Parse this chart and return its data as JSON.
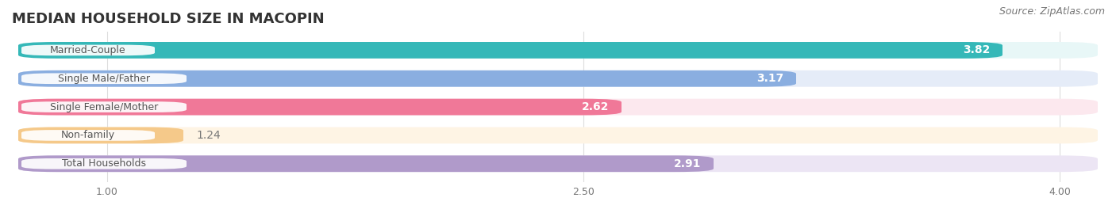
{
  "title": "MEDIAN HOUSEHOLD SIZE IN MACOPIN",
  "source": "Source: ZipAtlas.com",
  "categories": [
    "Married-Couple",
    "Single Male/Father",
    "Single Female/Mother",
    "Non-family",
    "Total Households"
  ],
  "values": [
    3.82,
    3.17,
    2.62,
    1.24,
    2.91
  ],
  "bar_colors": [
    "#35b8b8",
    "#8aaee0",
    "#f07898",
    "#f5c98a",
    "#b09aca"
  ],
  "bar_bg_colors": [
    "#e8f7f7",
    "#e5ecf8",
    "#fce8ee",
    "#fef4e4",
    "#ece5f4"
  ],
  "xlim_min": 0.72,
  "xlim_max": 4.12,
  "xticks": [
    1.0,
    2.5,
    4.0
  ],
  "xticklabels": [
    "1.00",
    "2.50",
    "4.00"
  ],
  "label_inside_threshold": 2.5,
  "title_fontsize": 13,
  "source_fontsize": 9,
  "bar_label_fontsize": 10,
  "category_fontsize": 9,
  "bar_height": 0.58,
  "background_color": "#ffffff",
  "grid_color": "#dddddd",
  "label_pill_color": "#ffffff",
  "label_text_color": "#555555",
  "value_label_color_inside": "#ffffff",
  "value_label_color_outside": "#777777"
}
